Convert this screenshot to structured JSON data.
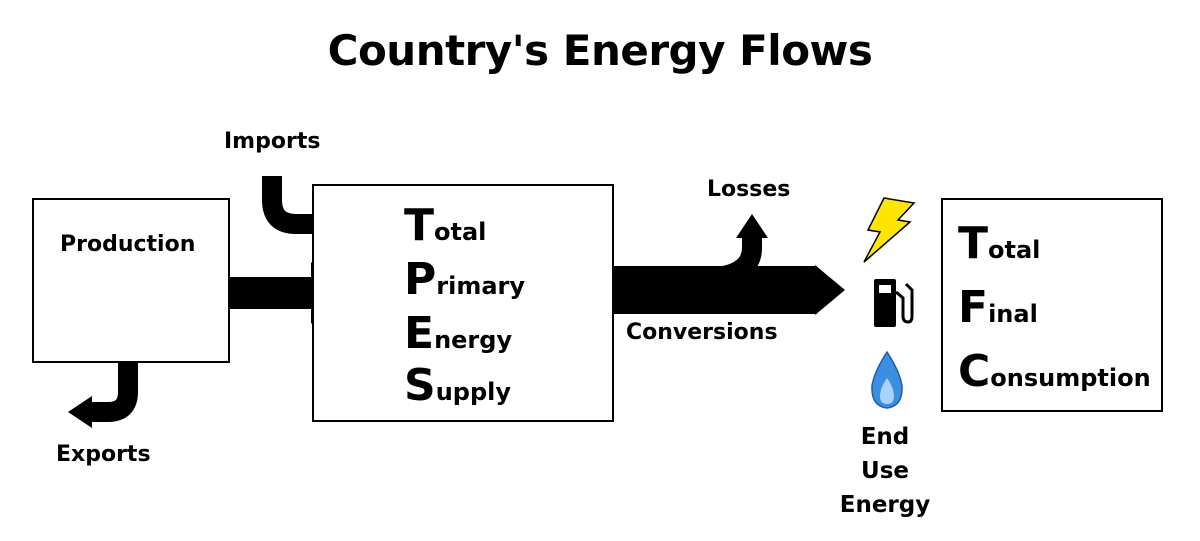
{
  "title": "Country's Energy Flows",
  "nodes": {
    "production": "Production",
    "imports": "Imports",
    "exports": "Exports",
    "losses": "Losses",
    "conversions": "Conversions",
    "tpes": {
      "lines": [
        {
          "initial": "T",
          "rest": "otal"
        },
        {
          "initial": "P",
          "rest": "rimary"
        },
        {
          "initial": "E",
          "rest": "nergy"
        },
        {
          "initial": "S",
          "rest": "upply"
        }
      ]
    },
    "tfc": {
      "lines": [
        {
          "initial": "T",
          "rest": "otal"
        },
        {
          "initial": "F",
          "rest": "inal"
        },
        {
          "initial": "C",
          "rest": "onsumption"
        }
      ]
    },
    "end_use": [
      "End",
      "Use",
      "Energy"
    ]
  },
  "icons": {
    "production": [
      "oil-pump-icon",
      "crossed-hammers-icon"
    ],
    "end_use": [
      "lightning-bolt-icon",
      "fuel-pump-icon",
      "gas-flame-icon"
    ]
  },
  "colors": {
    "arrows": "#000000",
    "lightning": "#ffe600",
    "flame": "#3a8fe0"
  }
}
